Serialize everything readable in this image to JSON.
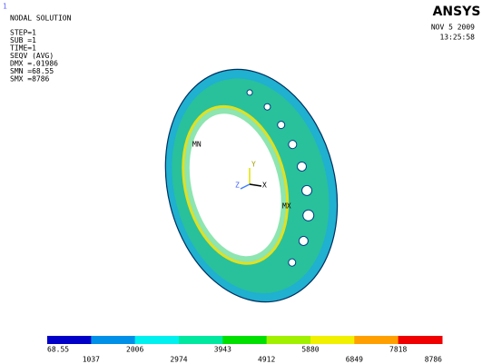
{
  "window_number": "1",
  "info": {
    "title": "NODAL SOLUTION",
    "lines": [
      "STEP=1",
      "SUB =1",
      "TIME=1",
      "SEQV    (AVG)",
      "DMX =.01986",
      "SMN =68.55",
      "SMX =8786"
    ]
  },
  "logo": "ANSYS",
  "date": "NOV  5 2009",
  "time": "13:25:58",
  "markers": {
    "min": "MN",
    "max": "MX"
  },
  "triad": {
    "y": "Y",
    "z": "Z",
    "x": "X"
  },
  "legend": {
    "labels": [
      "68.55",
      "1037",
      "2006",
      "2974",
      "3943",
      "4912",
      "5880",
      "6849",
      "7818",
      "8786"
    ],
    "colors": [
      "#0000c8",
      "#0090e8",
      "#00f0f0",
      "#00e8a0",
      "#00e000",
      "#a0f000",
      "#f0f000",
      "#ffa000",
      "#f00000"
    ]
  }
}
